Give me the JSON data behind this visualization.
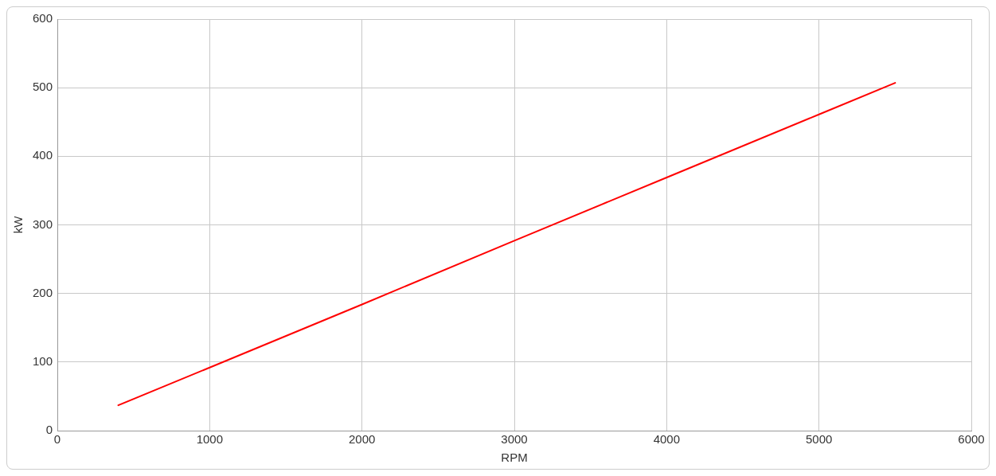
{
  "chart_data": {
    "type": "line",
    "xlabel": "RPM",
    "ylabel": "kW",
    "x": [
      400,
      1000,
      2000,
      3000,
      4000,
      5000,
      5500
    ],
    "series": [
      {
        "color": "#ff0000",
        "values": [
          37,
          92,
          184,
          277,
          369,
          461,
          507
        ]
      }
    ],
    "xlim": [
      0,
      6000
    ],
    "xticks": [
      0,
      1000,
      2000,
      3000,
      4000,
      5000,
      6000
    ],
    "ylim": [
      0,
      600
    ],
    "yticks": [
      0,
      100,
      200,
      300,
      400,
      500,
      600
    ],
    "grid": true,
    "legend": false,
    "marker": "none",
    "line_style": "solid"
  }
}
